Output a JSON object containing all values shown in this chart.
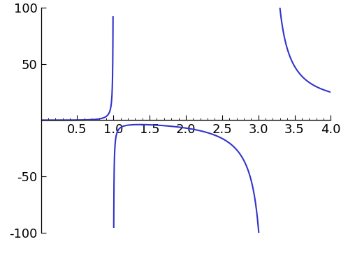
{
  "xmin": 0.0,
  "xmax": 4.0,
  "ymin": -100,
  "ymax": 100,
  "line_color": "#3333cc",
  "line_width": 1.5,
  "bg_color": "#ffffff",
  "xticks": [
    0.5,
    1.0,
    1.5,
    2.0,
    2.5,
    3.0,
    3.5,
    4.0
  ],
  "yticks": [
    -100,
    -50,
    50,
    100
  ],
  "asymptote1": 1.0,
  "asymptote2": 3.14159265,
  "tick_fontsize": 13,
  "figsize": [
    4.88,
    3.63
  ],
  "dpi": 100
}
